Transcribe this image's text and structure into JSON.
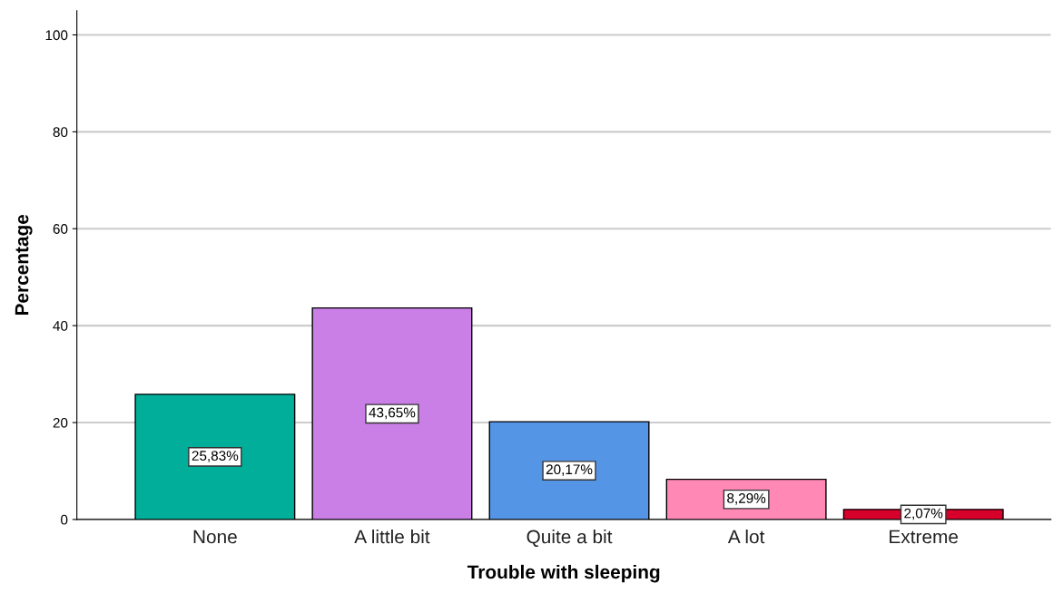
{
  "chart_data": {
    "type": "bar",
    "xlabel": "Trouble with sleeping",
    "ylabel": "Percentage",
    "categories": [
      "None",
      "A little bit",
      "Quite a bit",
      "A lot",
      "Extreme"
    ],
    "values": [
      25.83,
      43.65,
      20.17,
      8.29,
      2.07
    ],
    "value_labels": [
      "25,83%",
      "43,65%",
      "20,17%",
      "8,29%",
      "2,07%"
    ],
    "colors": [
      "#00ae9a",
      "#c97fe6",
      "#5495e6",
      "#ff88b4",
      "#d6002b"
    ],
    "ylim": [
      0,
      105
    ],
    "yticks": [
      0,
      20,
      40,
      60,
      80,
      100
    ],
    "grid": "y",
    "legend": false
  }
}
